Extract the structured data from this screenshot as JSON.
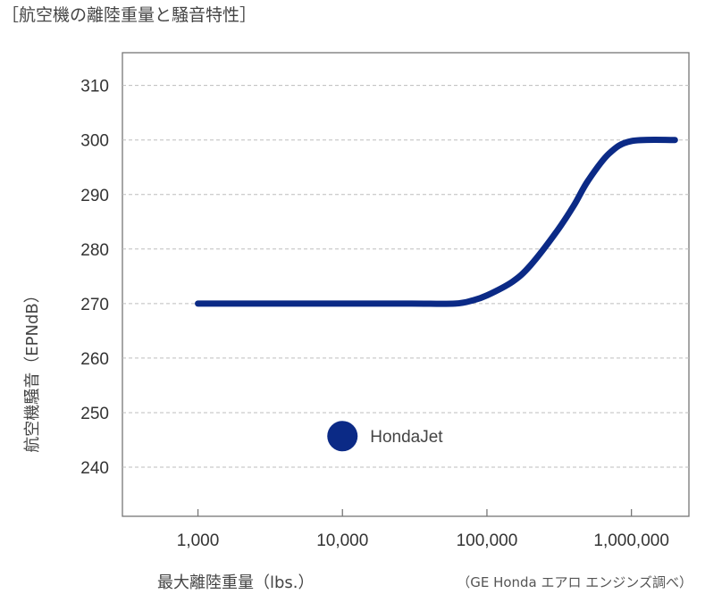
{
  "title": "［航空機の離陸重量と騒音特性］",
  "source": "（GE Honda エアロ エンジンズ調べ）",
  "colors": {
    "curve": "#0b2a86",
    "point": "#0b2a86",
    "grid": "#bdbdbd",
    "frame": "#777777"
  },
  "chart_data": {
    "type": "line",
    "title": "航空機の離陸重量と騒音特性",
    "xlabel": "最大離陸重量（lbs.）",
    "ylabel": "航空機騒音（EPNdB）",
    "x_scale": "log",
    "xlim": [
      300,
      2500000
    ],
    "ylim": [
      231,
      316
    ],
    "x_ticks": [
      1000,
      10000,
      100000,
      1000000
    ],
    "x_tick_labels": [
      "1,000",
      "10,000",
      "100,000",
      "1,000,000"
    ],
    "y_ticks": [
      240,
      250,
      260,
      270,
      280,
      290,
      300,
      310
    ],
    "y_tick_labels": [
      "240",
      "250",
      "260",
      "270",
      "280",
      "290",
      "300",
      "310"
    ],
    "grid": "horizontal dashed",
    "series": [
      {
        "points": [
          [
            1000,
            270
          ],
          [
            10000,
            270
          ],
          [
            30000,
            270
          ],
          [
            60000,
            270
          ],
          [
            80000,
            270.6
          ],
          [
            100000,
            271.5
          ],
          [
            150000,
            274
          ],
          [
            200000,
            277
          ],
          [
            300000,
            283
          ],
          [
            400000,
            288
          ],
          [
            500000,
            292.5
          ],
          [
            700000,
            297.5
          ],
          [
            1000000,
            299.8
          ],
          [
            2000000,
            300
          ]
        ]
      }
    ],
    "points": [
      {
        "label": "HondaJet",
        "x": 10000,
        "y": 245.7
      }
    ]
  }
}
